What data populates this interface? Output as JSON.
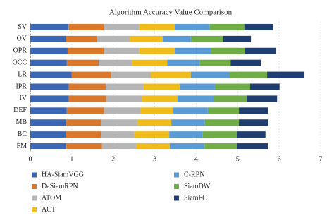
{
  "chart_data": {
    "type": "stacked-barh",
    "title": "Algorithm Accuracy Value Comparison",
    "categories": [
      "SV",
      "OV",
      "OPR",
      "OCC",
      "LR",
      "IPR",
      "IV",
      "DEF",
      "MB",
      "BC",
      "FM"
    ],
    "series": [
      {
        "name": "HA-SiamVGG",
        "color": "#3a66b3",
        "values": [
          0.92,
          0.85,
          0.9,
          0.88,
          1.0,
          0.93,
          0.93,
          0.88,
          0.87,
          0.85,
          0.87
        ]
      },
      {
        "name": "DaSiamRPN",
        "color": "#d9772b",
        "values": [
          0.85,
          0.75,
          0.87,
          0.77,
          0.94,
          0.89,
          0.9,
          0.89,
          0.83,
          0.85,
          0.86
        ]
      },
      {
        "name": "ATOM",
        "color": "#b5b5b5",
        "values": [
          0.86,
          0.8,
          0.86,
          0.81,
          0.97,
          0.9,
          0.87,
          0.88,
          0.88,
          0.81,
          0.82
        ]
      },
      {
        "name": "ACT",
        "color": "#efbc1c",
        "values": [
          0.85,
          0.79,
          0.85,
          0.84,
          0.96,
          0.88,
          0.85,
          0.8,
          0.82,
          0.84,
          0.81
        ]
      },
      {
        "name": "C-RPN",
        "color": "#5b9bd5",
        "values": [
          0.85,
          0.68,
          0.87,
          0.78,
          0.94,
          0.85,
          0.87,
          0.83,
          0.81,
          0.8,
          0.84
        ]
      },
      {
        "name": "SiamDW",
        "color": "#70ad47",
        "values": [
          0.83,
          0.78,
          0.83,
          0.75,
          0.9,
          0.85,
          0.8,
          0.75,
          0.82,
          0.83,
          0.78
        ]
      },
      {
        "name": "SiamFC",
        "color": "#1f3d6e",
        "values": [
          0.7,
          0.67,
          0.75,
          0.73,
          0.9,
          0.71,
          0.73,
          0.7,
          0.71,
          0.69,
          0.75
        ]
      }
    ],
    "xlim": [
      0,
      7
    ],
    "xticks": [
      0,
      1,
      2,
      3,
      4,
      5,
      6,
      7
    ],
    "grid": true
  }
}
